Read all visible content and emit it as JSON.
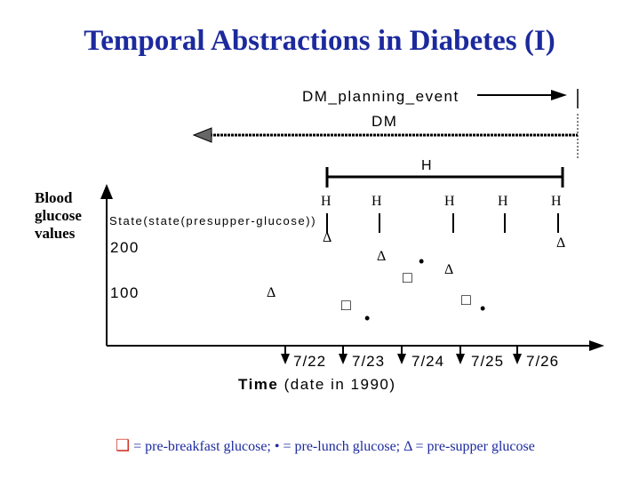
{
  "title": "Temporal Abstractions in Diabetes (I)",
  "y_axis_label": "Blood glucose values",
  "dm_planning_event_label": "DM_planning_event",
  "dm_label": "DM",
  "h_interval_label": "H",
  "h_point_labels": [
    "H",
    "H",
    "H",
    "H",
    "H"
  ],
  "state_label": "State(state(presupper-glucose))",
  "y_ticks": [
    "200",
    "100"
  ],
  "x_ticks": [
    "7/22",
    "7/23",
    "7/24",
    "7/25",
    "7/26"
  ],
  "x_axis_label_bold": "Time",
  "x_axis_label_rest": "(date in 1990)",
  "legend": {
    "square": "❑",
    "text": "= pre-breakfast glucose; • = pre-lunch glucose; Δ = pre-supper glucose"
  },
  "symbols": {
    "delta": "Δ",
    "square": "□",
    "dot": "•"
  },
  "colors": {
    "title": "#1c2a9e",
    "legend_text": "#1c2a9e",
    "legend_square": "#d4372a",
    "ink": "#000000"
  }
}
